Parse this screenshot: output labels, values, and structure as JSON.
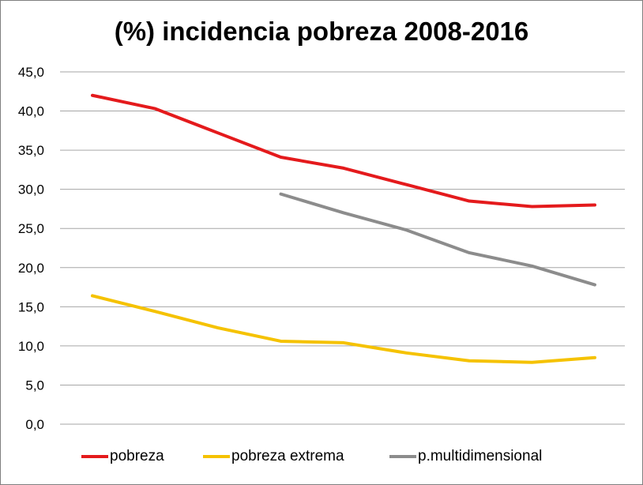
{
  "chart_data": {
    "type": "line",
    "title": "(%) incidencia pobreza 2008-2016",
    "xlabel": "",
    "ylabel": "",
    "ylim": [
      0,
      45
    ],
    "yticks": [
      "0,0",
      "5,0",
      "10,0",
      "15,0",
      "20,0",
      "25,0",
      "30,0",
      "35,0",
      "40,0",
      "45,0"
    ],
    "grid": true,
    "legend_position": "bottom",
    "series": [
      {
        "name": "pobreza",
        "color": "#e41a1c",
        "values": [
          42.0,
          40.3,
          37.2,
          34.1,
          32.7,
          30.6,
          28.5,
          27.8,
          28.0
        ]
      },
      {
        "name": "pobreza extrema",
        "color": "#f5c200",
        "values": [
          16.4,
          14.4,
          12.3,
          10.6,
          10.4,
          9.1,
          8.1,
          7.9,
          8.5
        ]
      },
      {
        "name": "p.multidimensional",
        "color": "#8c8c8c",
        "values": [
          null,
          null,
          null,
          29.4,
          27.0,
          24.8,
          21.9,
          20.2,
          17.8
        ]
      }
    ]
  }
}
